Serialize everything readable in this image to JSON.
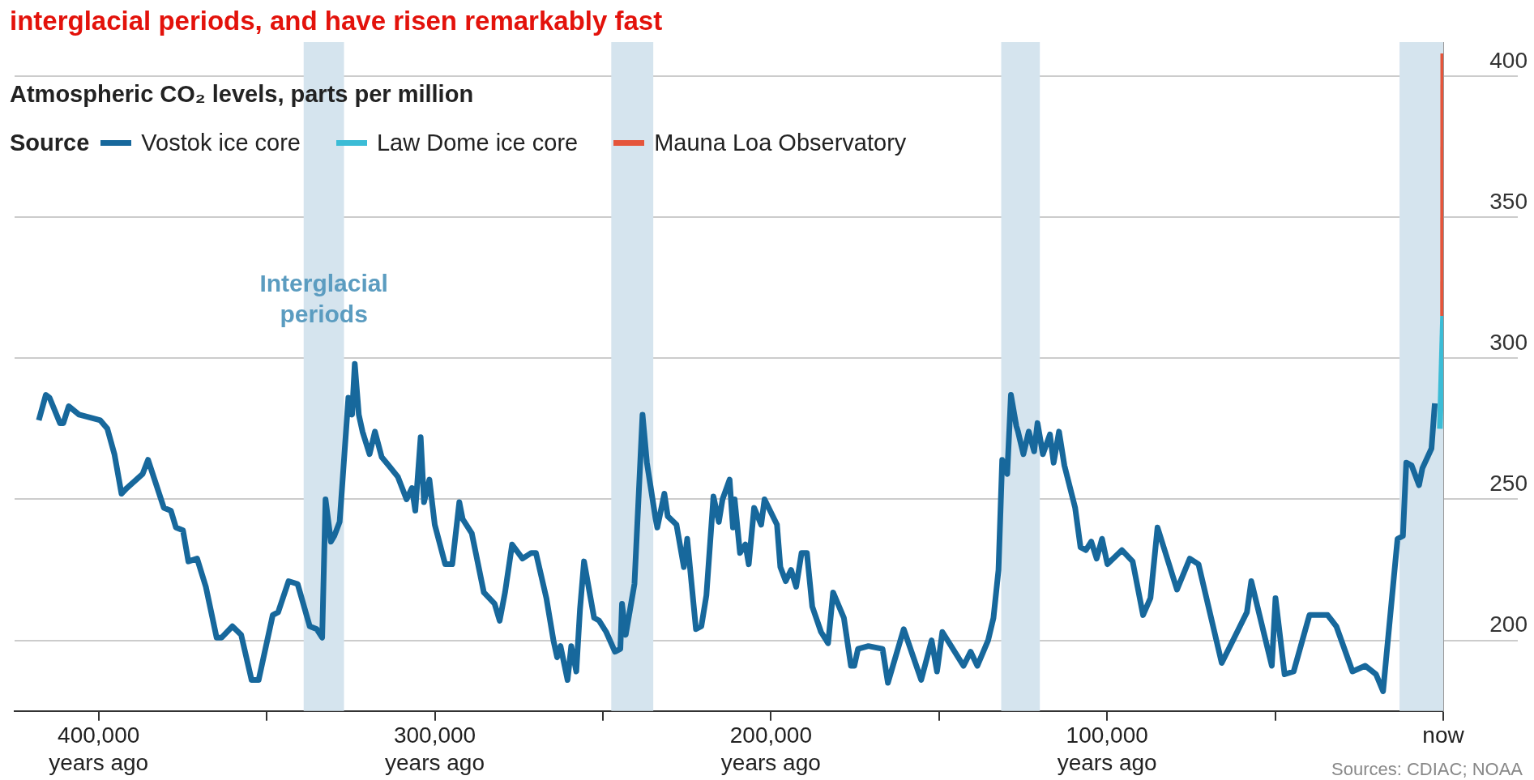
{
  "chart_data": {
    "type": "line",
    "title": "interglacial periods, and have risen remarkably fast",
    "subtitle": "Atmospheric CO₂ levels, parts per million",
    "legend_title": "Source",
    "legend": "top left",
    "grid": "y",
    "xlim": [
      425000,
      0
    ],
    "xticks": [
      {
        "value": 400000,
        "label": "400,000\nyears ago"
      },
      {
        "value": 350000,
        "label": null
      },
      {
        "value": 300000,
        "label": "300,000\nyears ago"
      },
      {
        "value": 250000,
        "label": null
      },
      {
        "value": 200000,
        "label": "200,000\nyears ago"
      },
      {
        "value": 150000,
        "label": null
      },
      {
        "value": 100000,
        "label": "100,000\nyears ago"
      },
      {
        "value": 50000,
        "label": null
      },
      {
        "value": 0,
        "label": "now"
      }
    ],
    "ylim": [
      175,
      412
    ],
    "yticks": [
      200,
      250,
      300,
      350,
      400
    ],
    "bands": [
      {
        "axis": "x",
        "from": 339000,
        "to": 327000,
        "label": "Interglacial periods",
        "color": "#d5e4ee"
      },
      {
        "axis": "x",
        "from": 247500,
        "to": 235000,
        "color": "#d5e4ee"
      },
      {
        "axis": "x",
        "from": 131500,
        "to": 120000,
        "color": "#d5e4ee"
      },
      {
        "axis": "x",
        "from": 13000,
        "to": 0,
        "color": "#d5e4ee"
      }
    ],
    "annotations": [
      "Sources: CDIAC; NOAA"
    ],
    "series": [
      {
        "name": "Vostok ice core",
        "color": "#17689c",
        "x": [
          417800,
          415700,
          414600,
          411500,
          410500,
          408900,
          405800,
          399500,
          397400,
          395300,
          393200,
          391600,
          386900,
          385300,
          380600,
          378500,
          377000,
          374900,
          373300,
          370700,
          368100,
          364900,
          363400,
          360200,
          357600,
          354500,
          352400,
          348200,
          346600,
          343500,
          340800,
          337200,
          335100,
          333500,
          332500,
          330900,
          329900,
          328300,
          325700,
          324600,
          323800,
          322600,
          321500,
          319400,
          317800,
          315800,
          313700,
          311000,
          308400,
          306800,
          305800,
          304200,
          303200,
          301600,
          300000,
          296900,
          294800,
          292700,
          291700,
          289000,
          285400,
          282200,
          280700,
          279100,
          277000,
          273900,
          271300,
          269900,
          266800,
          264700,
          263600,
          262600,
          260500,
          259400,
          257900,
          256800,
          255600,
          252600,
          251100,
          249000,
          246400,
          244800,
          244300,
          243200,
          240600,
          238200,
          236900,
          234300,
          233800,
          231700,
          230700,
          228100,
          225900,
          224900,
          222300,
          220700,
          219200,
          217100,
          215500,
          214400,
          212300,
          211300,
          210800,
          209200,
          207600,
          206600,
          205000,
          202900,
          201900,
          198200,
          197200,
          195600,
          194000,
          192500,
          190900,
          189300,
          187700,
          185100,
          183000,
          181500,
          178300,
          176200,
          175200,
          174100,
          171000,
          166800,
          165200,
          160500,
          155300,
          152200,
          150600,
          149000,
          142700,
          140600,
          138600,
          135400,
          133800,
          132300,
          131200,
          129700,
          128600,
          127000,
          126500,
          124900,
          123300,
          121700,
          120700,
          119100,
          117000,
          115900,
          114300,
          112700,
          109500,
          107900,
          106300,
          104700,
          103100,
          101500,
          99900,
          95600,
          92400,
          89300,
          87100,
          85000,
          79200,
          75400,
          72800,
          65900,
          58400,
          57100,
          51000,
          49900,
          47200,
          44500,
          39800,
          34400,
          31800,
          27000,
          23200,
          20000,
          17900,
          13600,
          12000,
          11000,
          9400,
          7200,
          6200,
          3500,
          2500
        ],
        "values": [
          278,
          287,
          286,
          277,
          277,
          283,
          280,
          278,
          275,
          266,
          252,
          254,
          259,
          264,
          247,
          246,
          240,
          239,
          228,
          229,
          219,
          201,
          201,
          205,
          202,
          186,
          186,
          209,
          210,
          221,
          220,
          205,
          204,
          201,
          250,
          235,
          237,
          242,
          286,
          280,
          298,
          280,
          274,
          266,
          274,
          265,
          262,
          258,
          250,
          254,
          246,
          272,
          249,
          257,
          241,
          227,
          227,
          249,
          243,
          238,
          217,
          213,
          207,
          217,
          234,
          229,
          231,
          231,
          215,
          200,
          194,
          198,
          186,
          198,
          189,
          211,
          228,
          208,
          207,
          203,
          196,
          197,
          213,
          202,
          220,
          280,
          263,
          243,
          240,
          252,
          244,
          241,
          226,
          236,
          204,
          205,
          216,
          251,
          242,
          250,
          257,
          240,
          250,
          231,
          234,
          227,
          247,
          241,
          250,
          241,
          226,
          221,
          225,
          219,
          231,
          231,
          212,
          203,
          199,
          217,
          208,
          191,
          191,
          197,
          198,
          197,
          185,
          204,
          186,
          200,
          189,
          203,
          191,
          196,
          191,
          200,
          208,
          225,
          264,
          259,
          287,
          276,
          274,
          266,
          274,
          267,
          277,
          266,
          273,
          263,
          274,
          262,
          247,
          233,
          232,
          235,
          229,
          236,
          227,
          232,
          228,
          209,
          215,
          240,
          218,
          229,
          227,
          192,
          210,
          221,
          191,
          215,
          188,
          189,
          209,
          209,
          205,
          189,
          191,
          188,
          182,
          236,
          237,
          263,
          262,
          255,
          261,
          268,
          284
        ]
      },
      {
        "name": "Law Dome ice core",
        "color": "#3bbcd6",
        "x": [
          1000,
          60
        ],
        "values": [
          275,
          315
        ]
      },
      {
        "name": "Mauna Loa Observatory",
        "color": "#e5553b",
        "x": [
          60,
          0
        ],
        "values": [
          315,
          408
        ]
      }
    ]
  }
}
